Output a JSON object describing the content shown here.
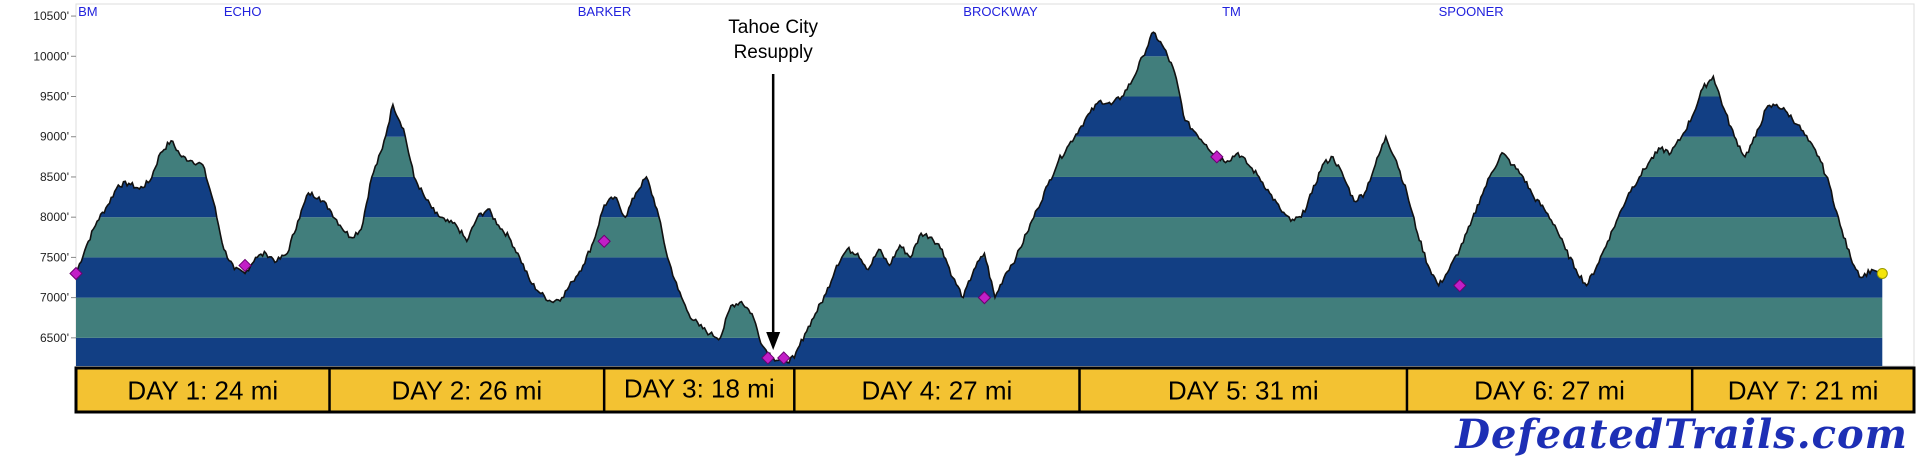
{
  "chart_data": {
    "type": "area",
    "title": "",
    "xlabel": "",
    "ylabel": "",
    "y_unit": "ft",
    "ylim": [
      6150,
      10650
    ],
    "band_interval": 500,
    "band_colors": [
      "#123f84",
      "#417e7c"
    ],
    "y_ticks": [
      {
        "value": 6500,
        "label": "6500'"
      },
      {
        "value": 7000,
        "label": "7000'"
      },
      {
        "value": 7500,
        "label": "7500'"
      },
      {
        "value": 8000,
        "label": "8000'"
      },
      {
        "value": 8500,
        "label": "8500'"
      },
      {
        "value": 9000,
        "label": "9000'"
      },
      {
        "value": 9500,
        "label": "9500'"
      },
      {
        "value": 10000,
        "label": "10000'"
      },
      {
        "value": 10500,
        "label": "10500'"
      }
    ],
    "total_miles": 174,
    "profile": [
      [
        0,
        7300
      ],
      [
        1,
        7650
      ],
      [
        2,
        7950
      ],
      [
        3,
        8150
      ],
      [
        4,
        8400
      ],
      [
        5,
        8420
      ],
      [
        6,
        8350
      ],
      [
        7,
        8450
      ],
      [
        8,
        8800
      ],
      [
        9,
        8950
      ],
      [
        10,
        8750
      ],
      [
        11,
        8700
      ],
      [
        12,
        8650
      ],
      [
        13,
        8200
      ],
      [
        14,
        7600
      ],
      [
        15,
        7350
      ],
      [
        16,
        7300
      ],
      [
        17,
        7500
      ],
      [
        18,
        7550
      ],
      [
        19,
        7450
      ],
      [
        20,
        7550
      ],
      [
        21,
        7950
      ],
      [
        22,
        8300
      ],
      [
        23,
        8250
      ],
      [
        24,
        8100
      ],
      [
        25,
        7900
      ],
      [
        26,
        7750
      ],
      [
        27,
        7850
      ],
      [
        28,
        8500
      ],
      [
        29,
        8850
      ],
      [
        30,
        9400
      ],
      [
        31,
        9100
      ],
      [
        32,
        8500
      ],
      [
        33,
        8250
      ],
      [
        34,
        8050
      ],
      [
        35,
        7950
      ],
      [
        36,
        7900
      ],
      [
        37,
        7700
      ],
      [
        38,
        8000
      ],
      [
        39,
        8100
      ],
      [
        40,
        7900
      ],
      [
        41,
        7750
      ],
      [
        42,
        7500
      ],
      [
        43,
        7200
      ],
      [
        44,
        7050
      ],
      [
        45,
        6950
      ],
      [
        46,
        7000
      ],
      [
        47,
        7200
      ],
      [
        48,
        7400
      ],
      [
        49,
        7700
      ],
      [
        50,
        8150
      ],
      [
        51,
        8250
      ],
      [
        52,
        8000
      ],
      [
        53,
        8300
      ],
      [
        54,
        8500
      ],
      [
        55,
        8100
      ],
      [
        56,
        7500
      ],
      [
        57,
        7100
      ],
      [
        58,
        6800
      ],
      [
        59,
        6650
      ],
      [
        60,
        6550
      ],
      [
        61,
        6500
      ],
      [
        62,
        6900
      ],
      [
        63,
        6950
      ],
      [
        64,
        6800
      ],
      [
        65,
        6400
      ],
      [
        66,
        6250
      ],
      [
        67,
        6200
      ],
      [
        68,
        6250
      ],
      [
        69,
        6550
      ],
      [
        70,
        6800
      ],
      [
        71,
        7050
      ],
      [
        72,
        7400
      ],
      [
        73,
        7600
      ],
      [
        74,
        7550
      ],
      [
        75,
        7350
      ],
      [
        76,
        7600
      ],
      [
        77,
        7400
      ],
      [
        78,
        7650
      ],
      [
        79,
        7500
      ],
      [
        80,
        7800
      ],
      [
        81,
        7750
      ],
      [
        82,
        7600
      ],
      [
        83,
        7250
      ],
      [
        84,
        7000
      ],
      [
        85,
        7350
      ],
      [
        86,
        7550
      ],
      [
        87,
        7000
      ],
      [
        88,
        7300
      ],
      [
        89,
        7500
      ],
      [
        90,
        7800
      ],
      [
        91,
        8100
      ],
      [
        92,
        8400
      ],
      [
        93,
        8700
      ],
      [
        94,
        8900
      ],
      [
        95,
        9100
      ],
      [
        96,
        9300
      ],
      [
        97,
        9450
      ],
      [
        98,
        9400
      ],
      [
        99,
        9500
      ],
      [
        100,
        9700
      ],
      [
        101,
        10000
      ],
      [
        102,
        10300
      ],
      [
        103,
        10100
      ],
      [
        104,
        9800
      ],
      [
        105,
        9200
      ],
      [
        106,
        9050
      ],
      [
        107,
        8900
      ],
      [
        108,
        8750
      ],
      [
        109,
        8700
      ],
      [
        110,
        8800
      ],
      [
        111,
        8650
      ],
      [
        112,
        8500
      ],
      [
        113,
        8300
      ],
      [
        114,
        8100
      ],
      [
        115,
        7950
      ],
      [
        116,
        8000
      ],
      [
        117,
        8300
      ],
      [
        118,
        8650
      ],
      [
        119,
        8750
      ],
      [
        120,
        8500
      ],
      [
        121,
        8200
      ],
      [
        122,
        8300
      ],
      [
        123,
        8650
      ],
      [
        124,
        9000
      ],
      [
        125,
        8700
      ],
      [
        126,
        8300
      ],
      [
        127,
        7800
      ],
      [
        128,
        7400
      ],
      [
        129,
        7150
      ],
      [
        130,
        7350
      ],
      [
        131,
        7600
      ],
      [
        132,
        7900
      ],
      [
        133,
        8250
      ],
      [
        134,
        8550
      ],
      [
        135,
        8800
      ],
      [
        136,
        8650
      ],
      [
        137,
        8500
      ],
      [
        138,
        8250
      ],
      [
        139,
        8100
      ],
      [
        140,
        7900
      ],
      [
        141,
        7600
      ],
      [
        142,
        7350
      ],
      [
        143,
        7150
      ],
      [
        144,
        7400
      ],
      [
        145,
        7700
      ],
      [
        146,
        8000
      ],
      [
        147,
        8300
      ],
      [
        148,
        8500
      ],
      [
        149,
        8700
      ],
      [
        150,
        8850
      ],
      [
        151,
        8800
      ],
      [
        152,
        9000
      ],
      [
        153,
        9250
      ],
      [
        154,
        9600
      ],
      [
        155,
        9750
      ],
      [
        156,
        9350
      ],
      [
        157,
        9000
      ],
      [
        158,
        8750
      ],
      [
        159,
        9000
      ],
      [
        160,
        9350
      ],
      [
        161,
        9400
      ],
      [
        162,
        9300
      ],
      [
        163,
        9150
      ],
      [
        164,
        8950
      ],
      [
        165,
        8750
      ],
      [
        166,
        8400
      ],
      [
        167,
        7900
      ],
      [
        168,
        7500
      ],
      [
        169,
        7250
      ],
      [
        170,
        7350
      ]
    ],
    "markers": [
      {
        "mile": 0,
        "elev": 7300
      },
      {
        "mile": 16,
        "elev": 7400
      },
      {
        "mile": 50,
        "elev": 7700
      },
      {
        "mile": 65.5,
        "elev": 6250
      },
      {
        "mile": 67,
        "elev": 6250
      },
      {
        "mile": 86,
        "elev": 7000
      },
      {
        "mile": 108,
        "elev": 8750
      },
      {
        "mile": 131,
        "elev": 7150
      }
    ],
    "end_marker": {
      "mile": 171,
      "elev": 7300
    },
    "place_labels": [
      {
        "label": "BM",
        "mile": 0.2
      },
      {
        "label": "ECHO",
        "mile": 14
      },
      {
        "label": "BARKER",
        "mile": 47.5
      },
      {
        "label": "BROCKWAY",
        "mile": 84
      },
      {
        "label": "TM",
        "mile": 108.5
      },
      {
        "label": "SPOONER",
        "mile": 129
      }
    ],
    "annotation": {
      "lines": [
        "Tahoe City",
        "Resupply"
      ],
      "mile": 66
    }
  },
  "day_segments": [
    {
      "label": "DAY 1: 24 mi",
      "miles": 24
    },
    {
      "label": "DAY 2: 26 mi",
      "miles": 26
    },
    {
      "label": "DAY 3: 18 mi",
      "miles": 18
    },
    {
      "label": "DAY 4: 27 mi",
      "miles": 27
    },
    {
      "label": "DAY 5: 31 mi",
      "miles": 31
    },
    {
      "label": "DAY 6: 27 mi",
      "miles": 27
    },
    {
      "label": "DAY 7: 21 mi",
      "miles": 21
    }
  ],
  "day_bar_color": "#f3c232",
  "brand": {
    "text": "DefeatedTrails.com"
  }
}
